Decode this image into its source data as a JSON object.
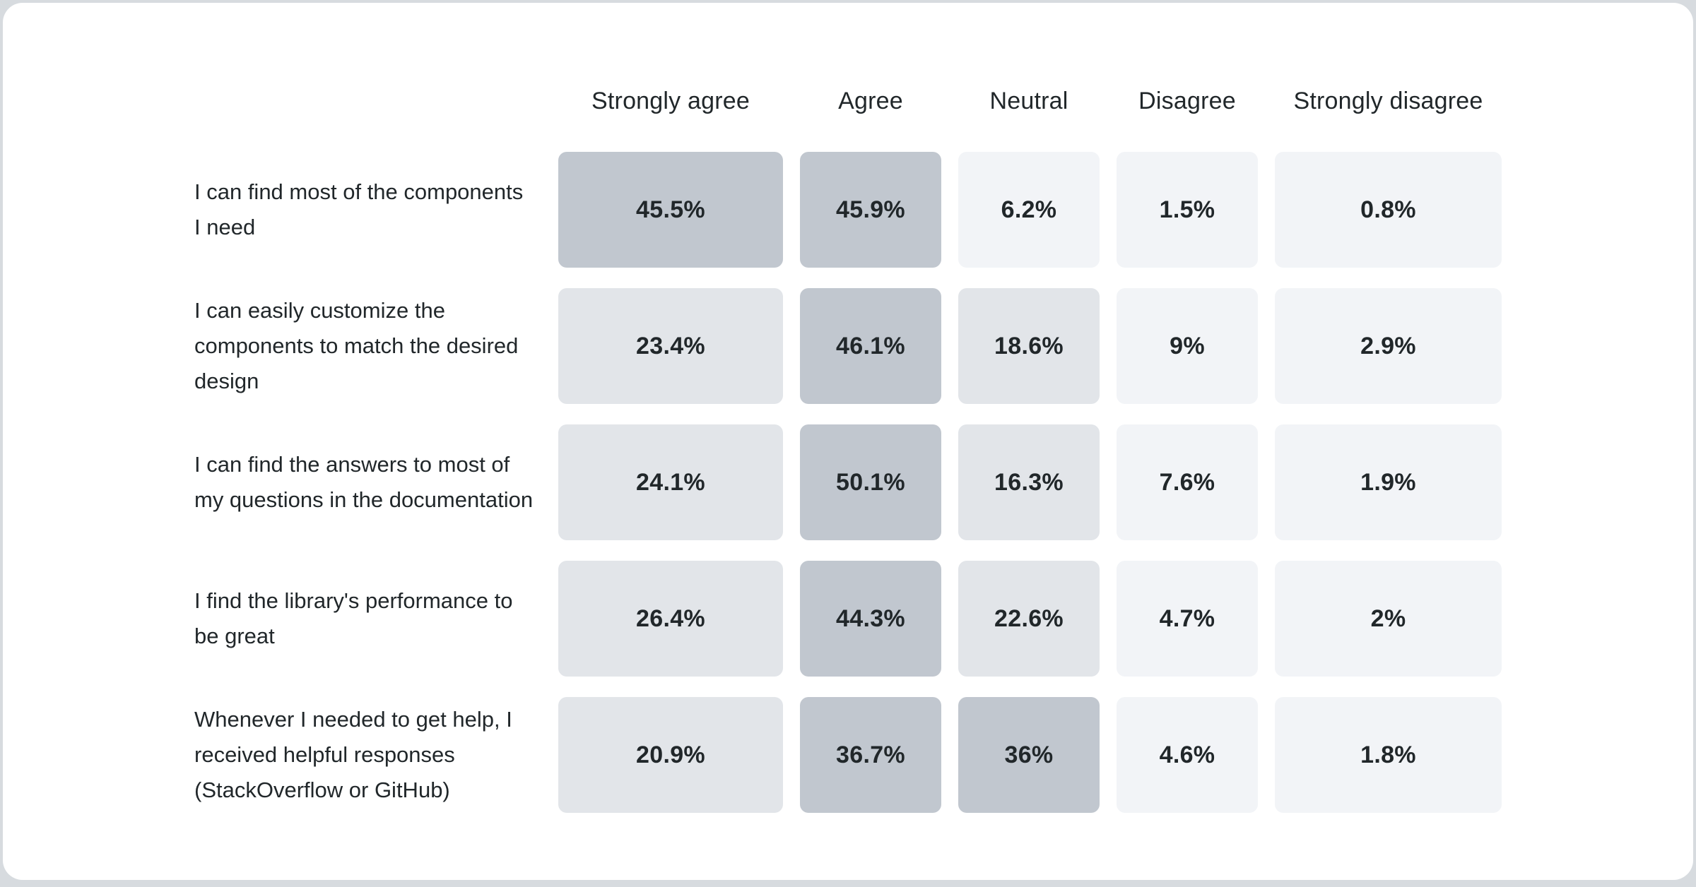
{
  "page": {
    "background": "#d7dbdf",
    "card_background": "#ffffff"
  },
  "chart_data": {
    "type": "heatmap",
    "title": "",
    "legend_position": "none",
    "grid": false,
    "columns": [
      "Strongly agree",
      "Agree",
      "Neutral",
      "Disagree",
      "Strongly disagree"
    ],
    "rows": [
      {
        "label": "I can find most of the components I need",
        "values": [
          45.5,
          45.9,
          6.2,
          1.5,
          0.8
        ],
        "display": [
          "45.5%",
          "45.9%",
          "6.2%",
          "1.5%",
          "0.8%"
        ]
      },
      {
        "label": "I can easily customize the components to match the desired design",
        "values": [
          23.4,
          46.1,
          18.6,
          9,
          2.9
        ],
        "display": [
          "23.4%",
          "46.1%",
          "18.6%",
          "9%",
          "2.9%"
        ]
      },
      {
        "label": "I can find the answers to most of my questions in the documentation",
        "values": [
          24.1,
          50.1,
          16.3,
          7.6,
          1.9
        ],
        "display": [
          "24.1%",
          "50.1%",
          "16.3%",
          "7.6%",
          "1.9%"
        ]
      },
      {
        "label": "I find the library's performance to be great",
        "values": [
          26.4,
          44.3,
          22.6,
          4.7,
          2
        ],
        "display": [
          "26.4%",
          "44.3%",
          "22.6%",
          "4.7%",
          "2%"
        ]
      },
      {
        "label": "Whenever I needed to get help, I received helpful responses (StackOverflow or GitHub)",
        "values": [
          20.9,
          36.7,
          36,
          4.6,
          1.8
        ],
        "display": [
          "20.9%",
          "36.7%",
          "36%",
          "4.6%",
          "1.8%"
        ]
      }
    ],
    "color_scale": {
      "buckets": [
        {
          "min": 30,
          "color": "#c1c7cf"
        },
        {
          "min": 15,
          "color": "#e2e5e9"
        },
        {
          "min": 0,
          "color": "#f2f4f7"
        }
      ],
      "text_color": "#21272a"
    }
  }
}
